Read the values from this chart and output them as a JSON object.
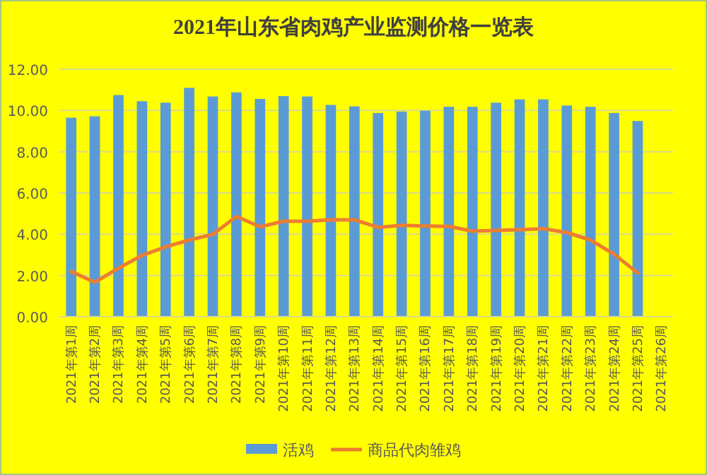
{
  "chart_data": {
    "type": "bar",
    "title": "2021年山东省肉鸡产业监测价格一览表",
    "categories": [
      "2021年第1周",
      "2021年第2周",
      "2021年第3周",
      "2021年第4周",
      "2021年第5周",
      "2021年第6周",
      "2021年第7周",
      "2021年第8周",
      "2021年第9周",
      "2021年第10周",
      "2021年第11周",
      "2021年第12周",
      "2021年第13周",
      "2021年第14周",
      "2021年第15周",
      "2021年第16周",
      "2021年第17周",
      "2021年第18周",
      "2021年第19周",
      "2021年第20周",
      "2021年第21周",
      "2021年第22周",
      "2021年第23周",
      "2021年第24周",
      "2021年第25周",
      "2021年第26周"
    ],
    "series": [
      {
        "name": "活鸡",
        "color": "#5b9bd5",
        "values": [
          9.65,
          9.72,
          10.75,
          10.45,
          10.38,
          11.1,
          10.68,
          10.88,
          10.56,
          10.7,
          10.68,
          10.27,
          10.2,
          9.88,
          9.95,
          9.99,
          10.18,
          10.18,
          10.38,
          10.54,
          10.54,
          10.24,
          10.18,
          9.88,
          9.49,
          null
        ]
      },
      {
        "name": "商品代肉雏鸡",
        "type": "line",
        "color": "#ed7d31",
        "values": [
          2.19,
          1.67,
          2.35,
          2.97,
          3.38,
          3.72,
          3.99,
          4.86,
          4.36,
          4.63,
          4.63,
          4.7,
          4.7,
          4.33,
          4.43,
          4.4,
          4.38,
          4.15,
          4.18,
          4.22,
          4.27,
          4.08,
          3.72,
          3.03,
          2.12,
          null
        ]
      }
    ],
    "ylim": [
      0,
      12
    ],
    "yticks": [
      {
        "value": 0,
        "label": "0.00"
      },
      {
        "value": 2,
        "label": "2.00"
      },
      {
        "value": 4,
        "label": "4.00"
      },
      {
        "value": 6,
        "label": "6.00"
      },
      {
        "value": 8,
        "label": "8.00"
      },
      {
        "value": 10,
        "label": "10.00"
      },
      {
        "value": 12,
        "label": "12.00"
      }
    ],
    "grid": "y",
    "legend": "bottom",
    "marker": "none",
    "line_style": "solid"
  }
}
